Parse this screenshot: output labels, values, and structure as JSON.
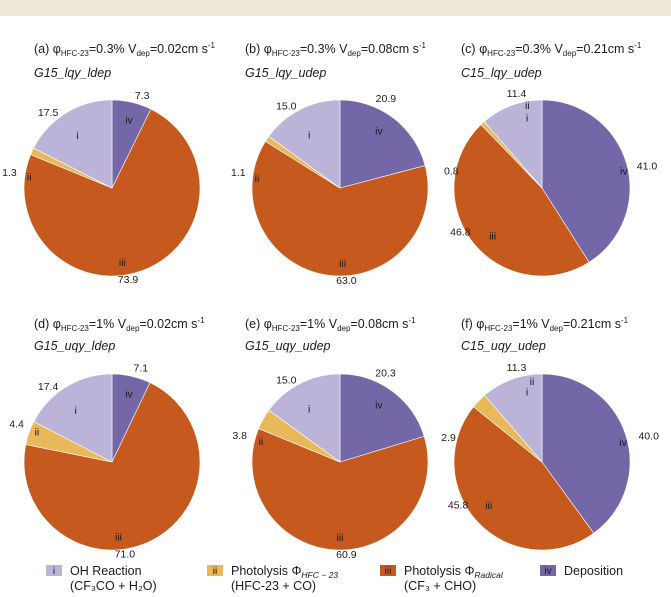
{
  "chart_data": {
    "type": "pie",
    "categories": [
      "i",
      "ii",
      "iii",
      "iv"
    ],
    "colors": [
      "#bbb3d8",
      "#e8b85a",
      "#c65a1e",
      "#7467a8"
    ],
    "panels": [
      {
        "letter": "(a)",
        "phi_value": "0.3%",
        "vdep_value": "0.02cm s",
        "subtitle": "G15_lqy_ldep",
        "values": [
          17.5,
          1.3,
          73.9,
          7.3
        ],
        "labels": [
          "17.5",
          "1.3",
          "73.9",
          "7.3"
        ]
      },
      {
        "letter": "(b)",
        "phi_value": "0.3%",
        "vdep_value": "0.08cm s",
        "subtitle": "G15_lqy_udep",
        "values": [
          15.0,
          1.1,
          63.0,
          20.9
        ],
        "labels": [
          "15.0",
          "1.1",
          "63.0",
          "20.9"
        ]
      },
      {
        "letter": "(c)",
        "phi_value": "0.3%",
        "vdep_value": "0.21cm s",
        "subtitle": "C15_lqy_udep",
        "values": [
          11.4,
          0.8,
          46.8,
          41.0
        ],
        "labels": [
          "11.4",
          "0.8",
          "46.8",
          "41.0"
        ]
      },
      {
        "letter": "(d)",
        "phi_value": "1%",
        "vdep_value": "0.02cm s",
        "subtitle": "G15_uqy_ldep",
        "values": [
          17.4,
          4.4,
          71.0,
          7.1
        ],
        "labels": [
          "17.4",
          "4.4",
          "71.0",
          "7.1"
        ]
      },
      {
        "letter": "(e)",
        "phi_value": "1%",
        "vdep_value": "0.08cm s",
        "subtitle": "G15_uqy_udep",
        "values": [
          15.0,
          3.8,
          60.9,
          20.3
        ],
        "labels": [
          "15.0",
          "3.8",
          "60.9",
          "20.3"
        ]
      },
      {
        "letter": "(f)",
        "phi_value": "1%",
        "vdep_value": "0.21cm s",
        "subtitle": "C15_uqy_udep",
        "values": [
          11.3,
          2.9,
          45.8,
          40.0
        ],
        "labels": [
          "11.3",
          "2.9",
          "45.8",
          "40.0"
        ]
      }
    ],
    "title_text": {
      "phi": "φ",
      "phi_sub": "HFC-23",
      "eq": "=",
      "v": "V",
      "v_sub": "dep",
      "eq2": "=",
      "unit_exp": "-1"
    },
    "legend": [
      {
        "roman": "i",
        "name": "OH Reaction",
        "detail": "(CF₃CO + H₂O)"
      },
      {
        "roman": "ii",
        "name_prefix": "Photolysis Φ",
        "name_sub": "HFC − 23",
        "detail": "(HFC-23 + CO)"
      },
      {
        "roman": "iii",
        "name_prefix": "Photolysis Φ",
        "name_sub": "Radical",
        "detail": "(CF₃ + CHO)"
      },
      {
        "roman": "iv",
        "name": "Deposition"
      }
    ]
  }
}
